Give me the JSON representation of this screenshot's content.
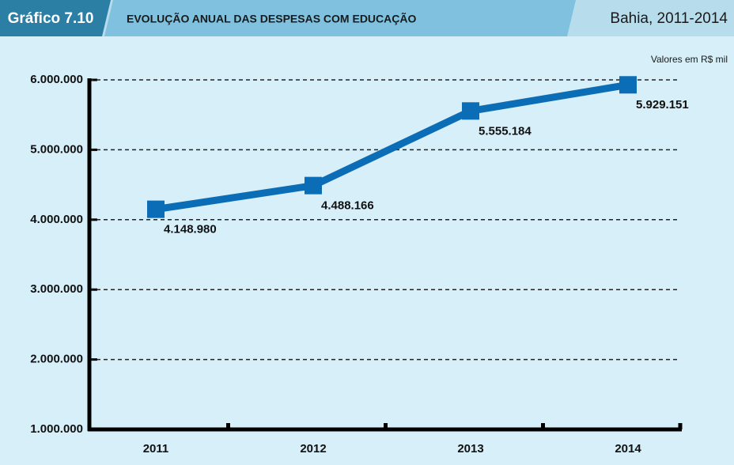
{
  "chart_data": {
    "type": "line",
    "figure_label": "Gráfico 7.10",
    "title": "EVOLUÇÃO ANUAL DAS DESPESAS COM EDUCAÇÃO",
    "subtitle": "Bahia, 2011-2014",
    "unit_note": "Valores em R$ mil",
    "categories": [
      "2011",
      "2012",
      "2013",
      "2014"
    ],
    "series": [
      {
        "name": "Despesas com educação",
        "color": "#0b6db6",
        "values": [
          4148980,
          4488166,
          5555184,
          5929151
        ],
        "value_labels": [
          "4.148.980",
          "4.488.166",
          "5.555.184",
          "5.929.151"
        ]
      }
    ],
    "ylim": [
      1000000,
      6000000
    ],
    "yticks": [
      {
        "value": 1000000,
        "label": "1.000.000"
      },
      {
        "value": 2000000,
        "label": "2.000.000"
      },
      {
        "value": 3000000,
        "label": "3.000.000"
      },
      {
        "value": 4000000,
        "label": "4.000.000"
      },
      {
        "value": 5000000,
        "label": "5.000.000"
      },
      {
        "value": 6000000,
        "label": "6.000.000"
      }
    ],
    "grid": true
  }
}
